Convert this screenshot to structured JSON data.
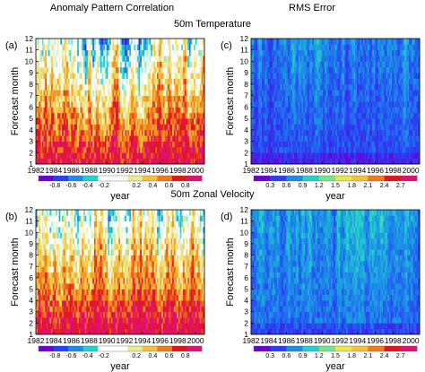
{
  "headers": {
    "col_left": "Anomaly Pattern Correlation",
    "col_right": "RMS Error",
    "row_top": "50m Temperature",
    "row_bottom": "50m Zonal Velocity"
  },
  "colors": {
    "acc": [
      "#6a00d8",
      "#2a3ef5",
      "#1c8ce8",
      "#23d2c9",
      "#ffffff",
      "#ffffff",
      "#ece98e",
      "#f2c23a",
      "#f07a1c",
      "#e4141a",
      "#e01075"
    ],
    "rms": [
      "#6a00d8",
      "#2a3ef5",
      "#1c8ce8",
      "#23d2c9",
      "#7ee08e",
      "#e2e84e",
      "#f2c23a",
      "#f07a1c",
      "#e4141a",
      "#e01075"
    ]
  },
  "chart_data": [
    {
      "type": "heatmap",
      "panel": "(a)",
      "variable": "50m Temperature",
      "metric": "Anomaly Pattern Correlation",
      "xlabel": "year",
      "ylabel": "Forecast month",
      "xticks": [
        "1982",
        "1984",
        "1986",
        "1988",
        "1990",
        "1992",
        "1994",
        "1996",
        "1998",
        "2000"
      ],
      "yticks": [
        "1",
        "2",
        "3",
        "4",
        "5",
        "6",
        "7",
        "8",
        "9",
        "10",
        "11",
        "12"
      ],
      "xlim": [
        1982,
        2001
      ],
      "ylim": [
        1,
        12
      ],
      "colorbar": {
        "ticks": [
          "-0.8",
          "-0.6",
          "-0.4",
          "-0.2",
          "0.2",
          "0.4",
          "0.6",
          "0.8"
        ],
        "range": [
          -1,
          1
        ]
      }
    },
    {
      "type": "heatmap",
      "panel": "(c)",
      "variable": "50m Temperature",
      "metric": "RMS Error",
      "xlabel": "year",
      "ylabel": "Forecast month",
      "xticks": [
        "1982",
        "1984",
        "1986",
        "1988",
        "1990",
        "1992",
        "1994",
        "1996",
        "1998",
        "2000"
      ],
      "yticks": [
        "1",
        "2",
        "3",
        "4",
        "5",
        "6",
        "7",
        "8",
        "9",
        "10",
        "11",
        "12"
      ],
      "xlim": [
        1982,
        2001
      ],
      "ylim": [
        1,
        12
      ],
      "colorbar": {
        "ticks": [
          "0.3",
          "0.6",
          "0.9",
          "1.2",
          "1.5",
          "1.8",
          "2.1",
          "2.4",
          "2.7"
        ],
        "range": [
          0,
          3
        ]
      }
    },
    {
      "type": "heatmap",
      "panel": "(b)",
      "variable": "50m Zonal Velocity",
      "metric": "Anomaly Pattern Correlation",
      "xlabel": "year",
      "ylabel": "Forecast month",
      "xticks": [
        "1982",
        "1984",
        "1986",
        "1988",
        "1990",
        "1992",
        "1994",
        "1996",
        "1998",
        "2000"
      ],
      "yticks": [
        "1",
        "2",
        "3",
        "4",
        "5",
        "6",
        "7",
        "8",
        "9",
        "10",
        "11",
        "12"
      ],
      "xlim": [
        1982,
        2001
      ],
      "ylim": [
        1,
        12
      ],
      "colorbar": {
        "ticks": [
          "-0.8",
          "-0.6",
          "-0.4",
          "-0.2",
          "0.2",
          "0.4",
          "0.6",
          "0.8"
        ],
        "range": [
          -1,
          1
        ]
      }
    },
    {
      "type": "heatmap",
      "panel": "(d)",
      "variable": "50m Zonal Velocity",
      "metric": "RMS Error",
      "xlabel": "year",
      "ylabel": "Forecast month",
      "xticks": [
        "1982",
        "1984",
        "1986",
        "1988",
        "1990",
        "1992",
        "1994",
        "1996",
        "1998",
        "2000"
      ],
      "yticks": [
        "1",
        "2",
        "3",
        "4",
        "5",
        "6",
        "7",
        "8",
        "9",
        "10",
        "11",
        "12"
      ],
      "xlim": [
        1982,
        2001
      ],
      "ylim": [
        1,
        12
      ],
      "colorbar": {
        "ticks": [
          "0.3",
          "0.6",
          "0.9",
          "1.2",
          "1.5",
          "1.8",
          "2.1",
          "2.4",
          "2.7"
        ],
        "range": [
          0,
          3
        ]
      }
    }
  ]
}
